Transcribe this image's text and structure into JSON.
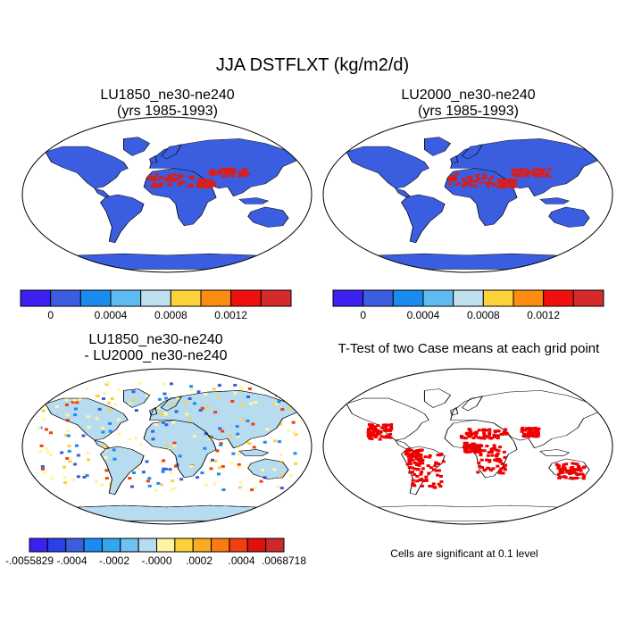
{
  "title": "JJA DSTFLXT (kg/m2/d)",
  "panels": [
    {
      "title_line1": "LU1850_ne30-ne240",
      "title_line2": "(yrs 1985-1993)",
      "fill": "#3b5ee0",
      "type": "field"
    },
    {
      "title_line1": "LU2000_ne30-ne240",
      "title_line2": "(yrs 1985-1993)",
      "fill": "#3b5ee0",
      "type": "field"
    },
    {
      "title_line1": "LU1850_ne30-ne240",
      "title_line2": "- LU2000_ne30-ne240",
      "fill": "#b7dcf0",
      "type": "diff"
    },
    {
      "title_line1": "T-Test of two Case means at each grid point",
      "title_line2": "",
      "fill": "none",
      "type": "ttest"
    }
  ],
  "colorbar_field": {
    "colors": [
      "#3b20f0",
      "#3b5ee0",
      "#1a8cf0",
      "#5ebcf0",
      "#c0e0f0",
      "#fcd23a",
      "#fc8c12",
      "#f01010",
      "#d42a2a"
    ],
    "labels": [
      "0",
      "0.0004",
      "0.0008",
      "0.0012"
    ]
  },
  "colorbar_diff": {
    "colors": [
      "#3b20f0",
      "#2a40e8",
      "#3b5ee0",
      "#1a8cf0",
      "#33a6f0",
      "#70c0f0",
      "#b7dcf0",
      "#fff5a0",
      "#fcd23a",
      "#fcaa22",
      "#fc7a12",
      "#f04010",
      "#e01010",
      "#cc2a2a"
    ],
    "labels": [
      "-.0055829",
      "-.0004",
      "-.0002",
      "-.0000",
      ".0002",
      ".0004",
      ".0068718"
    ]
  },
  "note": "Cells are significant at 0.1 level",
  "colors": {
    "ocean": "#ffffff",
    "coast": "#000000",
    "dust": "#d42020",
    "sig": "#ee0000"
  }
}
